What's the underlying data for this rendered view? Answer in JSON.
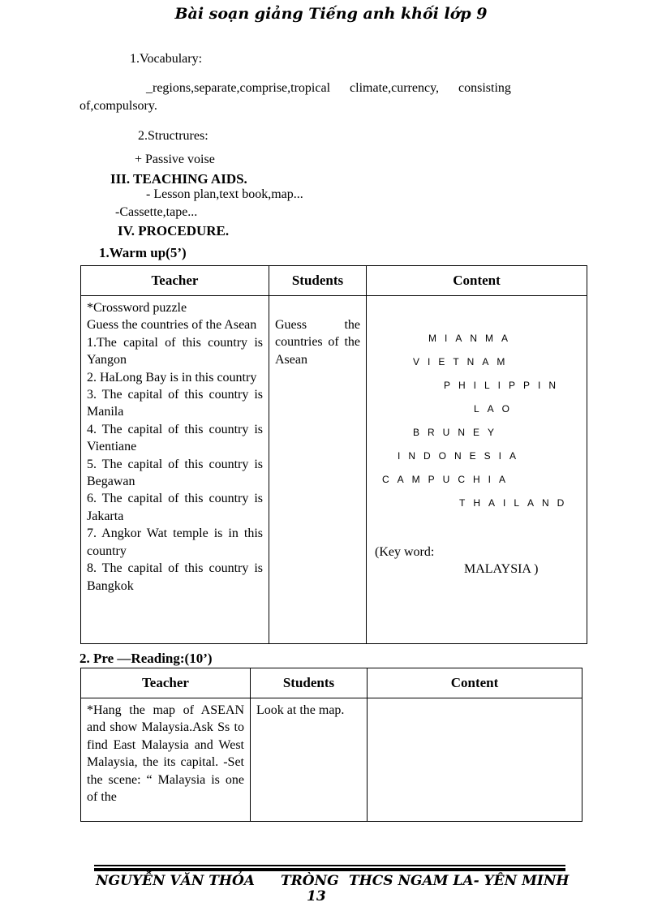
{
  "header": {
    "title": "Bài soạn giảng Tiếng anh khối lớp 9"
  },
  "body": {
    "vocab_heading": "1.Vocabulary:",
    "vocab_line1": "_regions,separate,comprise,tropical      climate,currency,      consisting",
    "vocab_line2": "of,compulsory.",
    "struct_heading": "2.Structrures:",
    "struct_item": "+ Passive voise",
    "aids_heading": "III. TEACHING AIDS.",
    "aids_1": "- Lesson plan,text book,map...",
    "aids_2": "-Cassette,tape...",
    "procedure_heading": "IV.  PROCEDURE.",
    "warmup_heading": "1.Warm up(5’)",
    "prereading_heading": "2. Pre —Reading:(10’)"
  },
  "table1": {
    "headers": [
      "Teacher",
      "Students",
      "Content"
    ],
    "teacher": "*Crossword puzzle\nGuess the countries of the Asean\n1.The capital of this country is Yangon\n2. HaLong Bay is in this country\n3. The capital of this country is Manila\n4. The capital of this country is Vientiane\n5. The capital of this country is Begawan\n6. The capital of this country is Jakarta\n7. Angkor Wat temple is in this country\n8. The capital of this country is Bangkok",
    "students": "Guess the countries of the Asean",
    "crossword": [
      "MIANMA",
      "VIETNAM",
      "PHILIPPIN",
      "LAO",
      "BRUNEY",
      "INDONESIA",
      "CAMPUCHIA",
      "THAILAND"
    ],
    "key_label": "(Key word:",
    "key_word": "MALAYSIA )"
  },
  "table2": {
    "headers": [
      "Teacher",
      "Students",
      "Content"
    ],
    "teacher": "*Hang the map of ASEAN and show Malaysia.Ask Ss to find East Malaysia and West Malaysia, the its capital. -Set the scene: “ Malaysia is one of the",
    "students": "Look at the map.",
    "content": ""
  },
  "footer": {
    "left": "NGUYỄN VĂN THỎA",
    "middle": "TRÒNG",
    "right": "THCS NGAM LA- YÊN MINH",
    "page": "13"
  }
}
